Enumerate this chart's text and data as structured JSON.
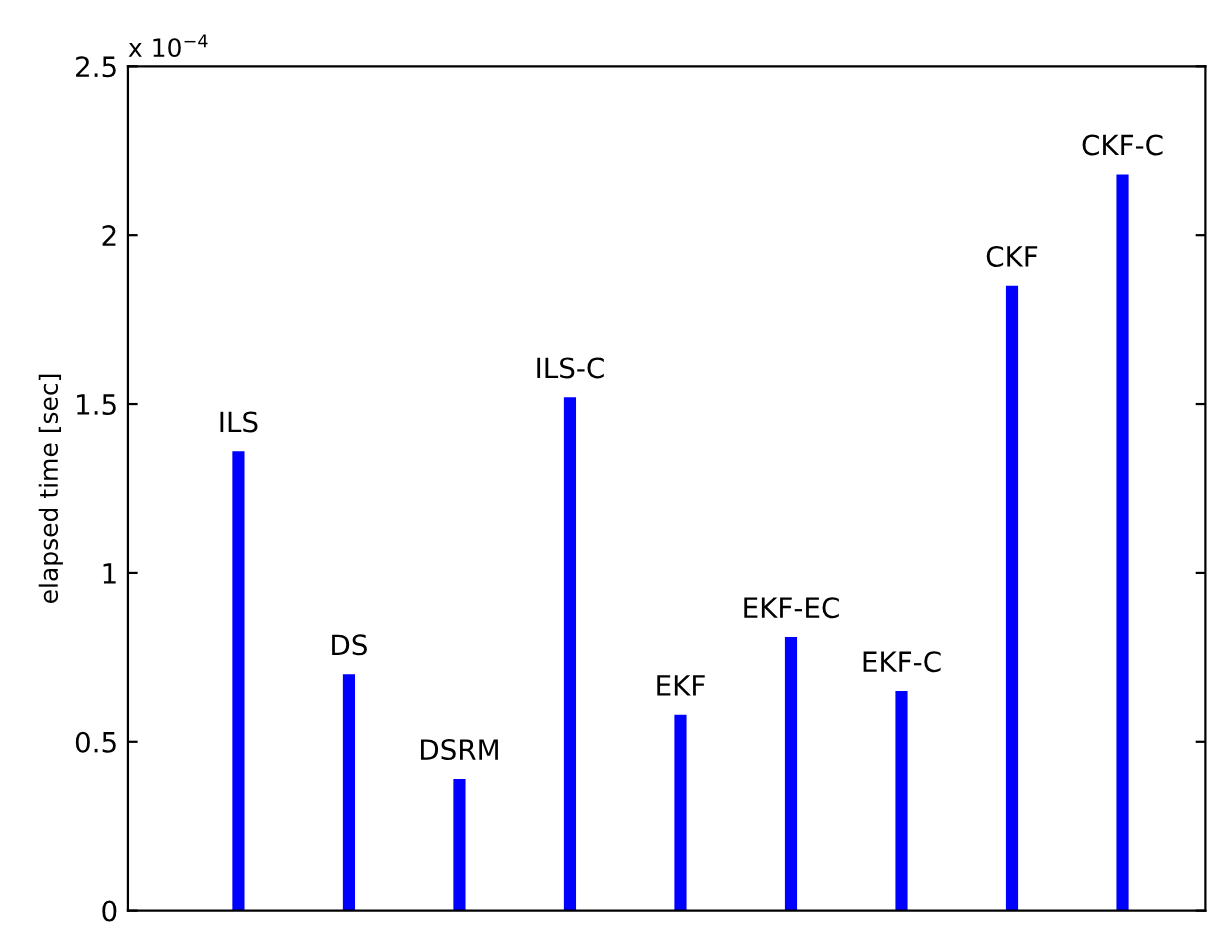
{
  "chart_data": {
    "type": "bar",
    "ylabel": "elapsed time [sec]",
    "categories": [
      "ILS",
      "DS",
      "DSRM",
      "ILS-C",
      "EKF",
      "EKF-EC",
      "EKF-C",
      "CKF",
      "CKF-C"
    ],
    "values": [
      1.36,
      0.7,
      0.39,
      1.52,
      0.58,
      0.81,
      0.65,
      1.85,
      2.18
    ],
    "color": "#0000ff",
    "ylim": [
      0,
      2.5
    ],
    "yticks": [
      0,
      0.5,
      1,
      1.5,
      2,
      2.5
    ],
    "annotations": [
      "x 10$^{−4}$"
    ],
    "tick_labels": "y",
    "grid": false
  }
}
